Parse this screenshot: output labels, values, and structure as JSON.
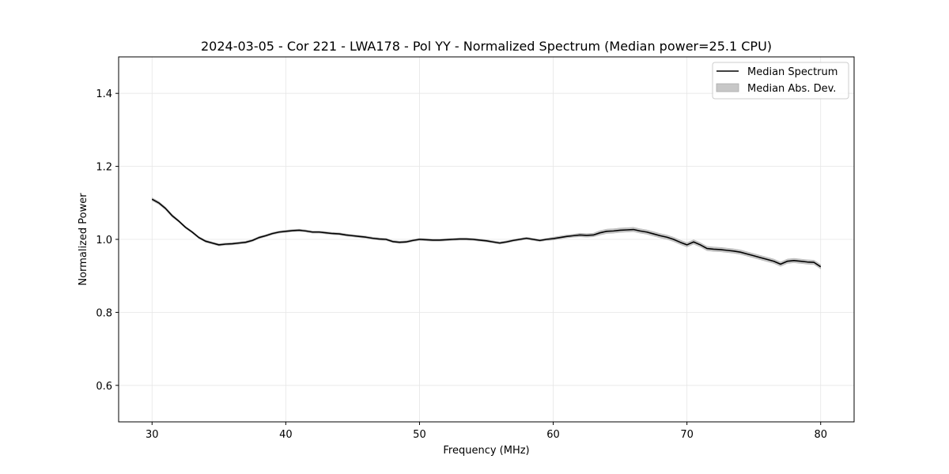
{
  "chart_data": {
    "type": "line",
    "title": "2024-03-05 - Cor 221 - LWA178 - Pol YY - Normalized Spectrum (Median power=25.1 CPU)",
    "xlabel": "Frequency (MHz)",
    "ylabel": "Normalized Power",
    "xlim": [
      27.5,
      82.5
    ],
    "ylim": [
      0.5,
      1.5
    ],
    "xticks": [
      30,
      40,
      50,
      60,
      70,
      80
    ],
    "yticks": [
      0.6,
      0.8,
      1.0,
      1.2,
      1.4
    ],
    "xtick_labels": [
      "30",
      "40",
      "50",
      "60",
      "70",
      "80"
    ],
    "ytick_labels": [
      "0.6",
      "0.8",
      "1.0",
      "1.2",
      "1.4"
    ],
    "grid": true,
    "legend": {
      "position": "top-right",
      "entries": [
        {
          "label": "Median Spectrum",
          "kind": "line",
          "color": "#000000"
        },
        {
          "label": "Median Abs. Dev.",
          "kind": "patch",
          "color": "#c7c7c7"
        }
      ]
    },
    "series": [
      {
        "name": "Median Spectrum",
        "color": "#000000",
        "x": [
          30,
          30.5,
          31,
          31.5,
          32,
          32.5,
          33,
          33.5,
          34,
          34.5,
          35,
          35.5,
          36,
          36.5,
          37,
          37.5,
          38,
          38.5,
          39,
          39.5,
          40,
          40.5,
          41,
          41.5,
          42,
          42.5,
          43,
          43.5,
          44,
          44.5,
          45,
          45.5,
          46,
          46.5,
          47,
          47.5,
          48,
          48.5,
          49,
          49.5,
          50,
          50.5,
          51,
          51.5,
          52,
          52.5,
          53,
          53.5,
          54,
          54.5,
          55,
          55.5,
          56,
          56.5,
          57,
          57.5,
          58,
          58.5,
          59,
          59.5,
          60,
          60.5,
          61,
          61.5,
          62,
          62.5,
          63,
          63.5,
          64,
          64.5,
          65,
          65.5,
          66,
          66.5,
          67,
          67.5,
          68,
          68.5,
          69,
          69.5,
          70,
          70.5,
          71,
          71.5,
          72,
          72.5,
          73,
          73.5,
          74,
          74.5,
          75,
          75.5,
          76,
          76.5,
          77,
          77.5,
          78,
          78.5,
          79,
          79.5,
          80
        ],
        "y": [
          1.11,
          1.1,
          1.085,
          1.065,
          1.05,
          1.033,
          1.02,
          1.005,
          0.995,
          0.99,
          0.985,
          0.987,
          0.988,
          0.99,
          0.992,
          0.997,
          1.005,
          1.01,
          1.016,
          1.02,
          1.022,
          1.024,
          1.025,
          1.023,
          1.02,
          1.02,
          1.018,
          1.016,
          1.015,
          1.012,
          1.01,
          1.008,
          1.006,
          1.003,
          1.001,
          1.0,
          0.994,
          0.992,
          0.993,
          0.997,
          1.0,
          0.999,
          0.998,
          0.998,
          0.999,
          1.0,
          1.001,
          1.001,
          1.0,
          0.998,
          0.996,
          0.993,
          0.99,
          0.993,
          0.997,
          1.0,
          1.003,
          1.0,
          0.997,
          1.0,
          1.002,
          1.005,
          1.008,
          1.01,
          1.012,
          1.011,
          1.012,
          1.018,
          1.022,
          1.023,
          1.025,
          1.026,
          1.027,
          1.023,
          1.02,
          1.015,
          1.01,
          1.006,
          1.0,
          0.992,
          0.985,
          0.993,
          0.985,
          0.975,
          0.973,
          0.972,
          0.97,
          0.968,
          0.965,
          0.96,
          0.955,
          0.95,
          0.945,
          0.94,
          0.932,
          0.94,
          0.942,
          0.94,
          0.938,
          0.937,
          0.925
        ],
        "mad": [
          0.004,
          0.004,
          0.004,
          0.004,
          0.003,
          0.003,
          0.003,
          0.003,
          0.003,
          0.003,
          0.003,
          0.003,
          0.003,
          0.003,
          0.003,
          0.003,
          0.003,
          0.003,
          0.003,
          0.003,
          0.003,
          0.003,
          0.003,
          0.003,
          0.003,
          0.003,
          0.003,
          0.003,
          0.003,
          0.003,
          0.003,
          0.003,
          0.003,
          0.003,
          0.003,
          0.003,
          0.003,
          0.003,
          0.003,
          0.003,
          0.003,
          0.003,
          0.003,
          0.003,
          0.003,
          0.003,
          0.003,
          0.003,
          0.003,
          0.003,
          0.003,
          0.003,
          0.003,
          0.003,
          0.003,
          0.003,
          0.003,
          0.003,
          0.003,
          0.003,
          0.004,
          0.004,
          0.004,
          0.004,
          0.005,
          0.005,
          0.005,
          0.006,
          0.006,
          0.006,
          0.006,
          0.006,
          0.006,
          0.006,
          0.006,
          0.006,
          0.006,
          0.006,
          0.006,
          0.006,
          0.006,
          0.006,
          0.006,
          0.006,
          0.006,
          0.006,
          0.006,
          0.006,
          0.006,
          0.006,
          0.006,
          0.006,
          0.006,
          0.006,
          0.006,
          0.006,
          0.006,
          0.006,
          0.006,
          0.006,
          0.006
        ]
      }
    ]
  }
}
